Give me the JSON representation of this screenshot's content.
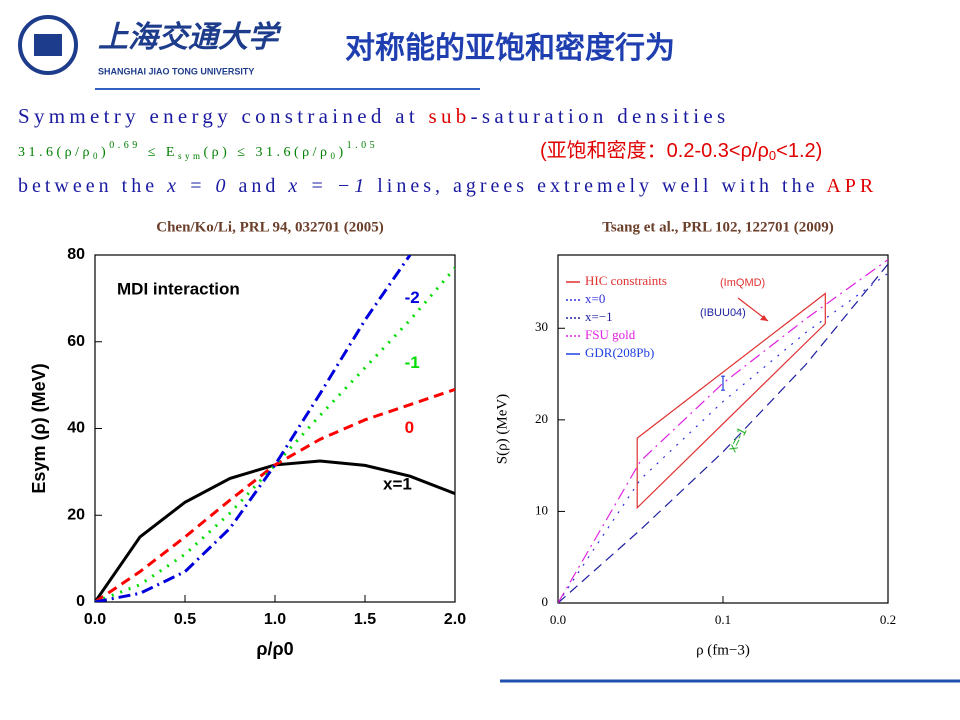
{
  "header": {
    "logo_cn": "上海交通大学",
    "logo_en": "SHANGHAI JIAO TONG UNIVERSITY",
    "title": "对称能的亚饱和密度行为"
  },
  "text": {
    "line1": [
      "Symmetry energy constrained at ",
      "sub",
      "-saturation densities"
    ],
    "formula": [
      "31.6(ρ/ρ",
      "0",
      ")",
      "0.69",
      " ≤ E",
      "sym",
      "(ρ) ≤ 31.6(ρ/ρ",
      "0",
      ")",
      "1.05"
    ],
    "note": [
      "(亚饱和密度：0.2-0.3<ρ/ρ",
      "0",
      "<1.2)"
    ],
    "line3": [
      "between the ",
      "x = 0",
      " and ",
      "x = −1",
      " lines, agrees extremely well with the ",
      "APR"
    ]
  },
  "chart_data": [
    {
      "type": "line",
      "caption": "Chen/Ko/Li, PRL 94, 032701 (2005)",
      "title": "MDI interaction",
      "xlabel": "ρ/ρ0",
      "ylabel": "Esym (ρ) (MeV)",
      "x": [
        0,
        0.25,
        0.5,
        0.75,
        1,
        1.25,
        1.5,
        1.75,
        2
      ],
      "series": [
        {
          "name": "x=1",
          "color": "#000000",
          "style": "solid",
          "values": [
            0,
            15,
            23,
            28.5,
            31.6,
            32.5,
            31.5,
            29,
            25
          ]
        },
        {
          "name": "0",
          "color": "#ff0000",
          "style": "dashed",
          "values": [
            0,
            7,
            15,
            23.5,
            31.6,
            37.5,
            42,
            45.5,
            49
          ]
        },
        {
          "name": "-1",
          "color": "#00dd00",
          "style": "dotted",
          "values": [
            0,
            4,
            11,
            20.5,
            31.6,
            43,
            54,
            65,
            77
          ]
        },
        {
          "name": "-2",
          "color": "#0000dd",
          "style": "dashdot",
          "values": [
            0,
            2,
            7,
            17,
            31.6,
            48,
            65,
            80,
            null
          ]
        }
      ],
      "xlim": [
        0,
        2
      ],
      "ylim": [
        0,
        80
      ],
      "xticks": [
        {
          "value": 0,
          "label": "0.0"
        },
        0.5,
        {
          "value": 1,
          "label": "1.0"
        },
        1.5,
        {
          "value": 2,
          "label": "2.0"
        }
      ],
      "yticks": [
        0,
        20,
        40,
        60,
        80
      ]
    },
    {
      "type": "line",
      "caption": "Tsang et al., PRL 102, 122701 (2009)",
      "xlabel": "ρ (fm−3)",
      "ylabel": "S(ρ) (MeV)",
      "annotations": [
        "(ImQMD)",
        "(IBUU04)",
        "x=-1"
      ],
      "regions": [
        {
          "name": "HIC constraints",
          "color": "#e03030",
          "x": [
            0.048,
            0.162,
            0.162,
            0.048
          ],
          "y": [
            18,
            33.8,
            30.5,
            10.4
          ]
        }
      ],
      "x": [
        0,
        0.05,
        0.1,
        0.15,
        0.2
      ],
      "series": [
        {
          "name": "x=0",
          "color": "#3030e0",
          "style": "dotted",
          "values": [
            0,
            13.5,
            22,
            29.5,
            36
          ]
        },
        {
          "name": "x=−1",
          "color": "#2020a0",
          "style": "dashed",
          "values": [
            0,
            8,
            16.5,
            26,
            37
          ]
        },
        {
          "name": "FSU gold",
          "color": "#e020e0",
          "style": "dashdot",
          "values": [
            0,
            15.5,
            24,
            31,
            37.5
          ]
        }
      ],
      "points": [
        {
          "name": "GDR(208Pb)",
          "color": "#2040e0",
          "x": 0.1,
          "y": 24
        }
      ],
      "xlim": [
        0,
        0.2
      ],
      "ylim": [
        0,
        38
      ],
      "xticks": [
        {
          "value": 0,
          "label": "0.0"
        },
        0.1,
        0.2
      ],
      "yticks": [
        0,
        10,
        20,
        30
      ]
    }
  ]
}
